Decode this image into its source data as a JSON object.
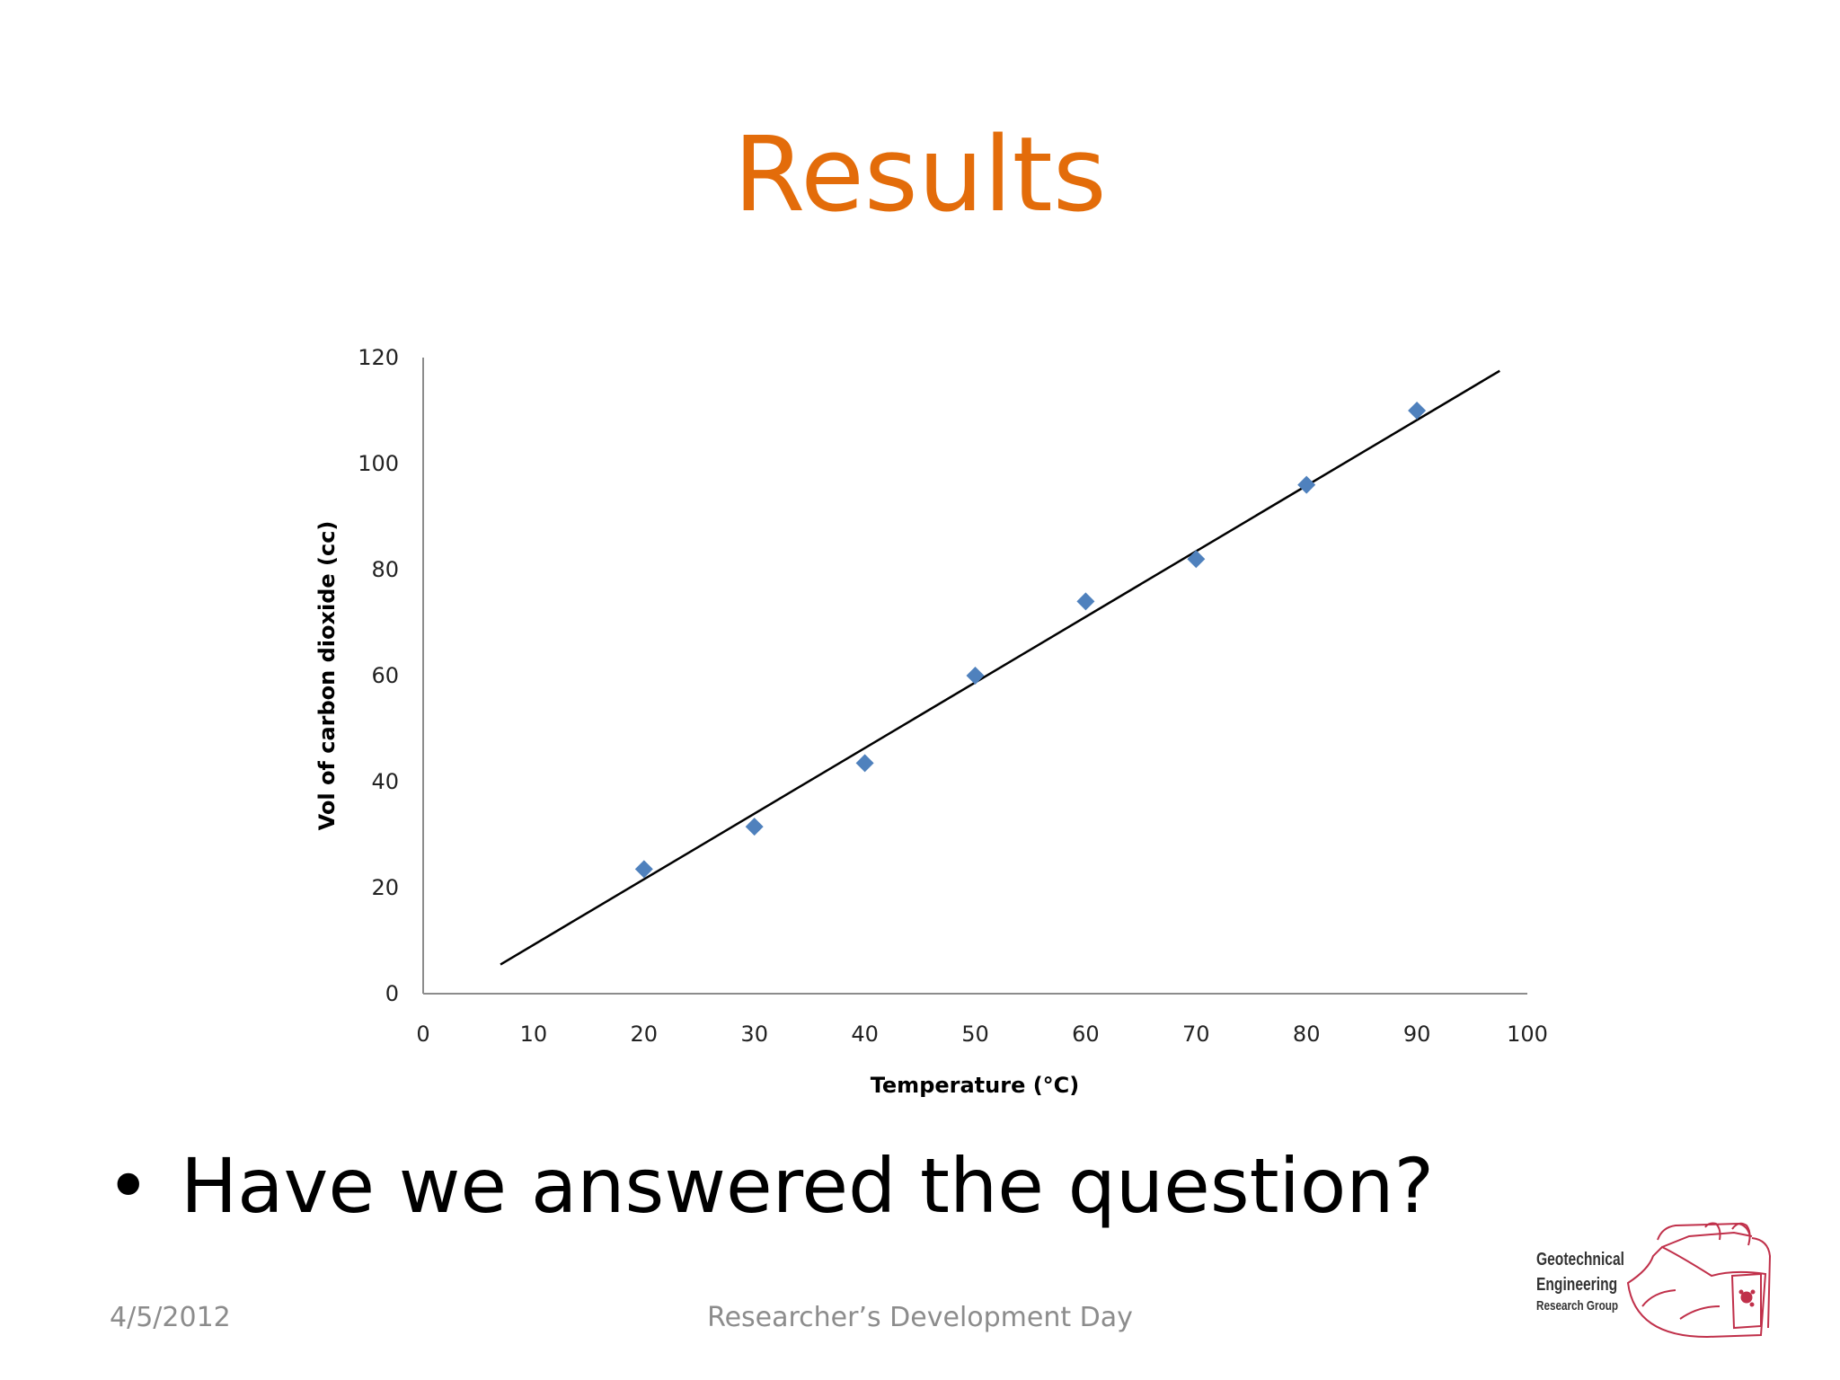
{
  "slide": {
    "title": "Results",
    "title_color": "#E36C0A",
    "bullet_symbol": "•",
    "bullet_text": "Have we answered the question?",
    "footer_date": "4/5/2012",
    "footer_event": "Researcher’s Development Day",
    "logo": {
      "line1": "Geotechnical",
      "line2": "Engineering",
      "line3": "Research Group",
      "color": "#C0304A"
    }
  },
  "chart_data": {
    "type": "scatter",
    "title": "",
    "xlabel": "Temperature (°C)",
    "ylabel": "Vol of carbon dioxide (cc)",
    "xlim": [
      0,
      100
    ],
    "ylim": [
      0,
      120
    ],
    "xticks": [
      0,
      10,
      20,
      30,
      40,
      50,
      60,
      70,
      80,
      90,
      100
    ],
    "yticks": [
      0,
      20,
      40,
      60,
      80,
      100,
      120
    ],
    "grid": false,
    "legend": "none",
    "marker": "diamond",
    "marker_color": "#4F81BD",
    "series": [
      {
        "x": [
          20,
          30,
          40,
          50,
          60,
          70,
          80,
          90
        ],
        "y": [
          23.5,
          31.5,
          43.5,
          60,
          74,
          82,
          96,
          110
        ]
      }
    ],
    "trendline": {
      "type": "linear",
      "color": "#000000",
      "x": [
        7,
        97.5
      ],
      "y": [
        5.5,
        117.5
      ]
    }
  }
}
